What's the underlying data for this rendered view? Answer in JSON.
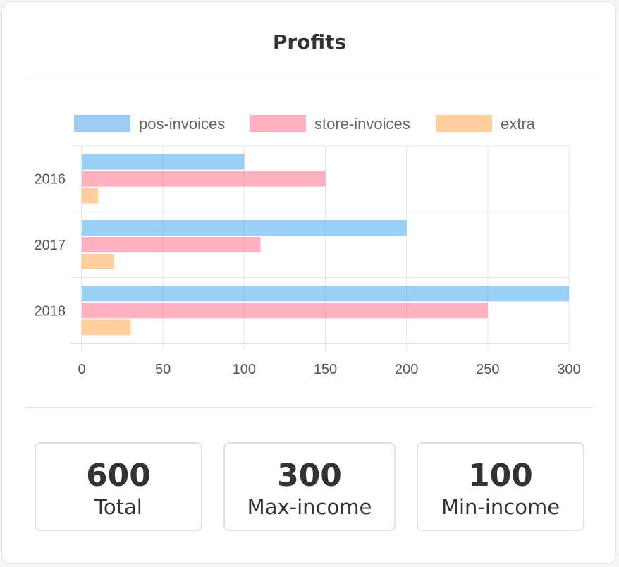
{
  "card": {
    "title": "Profits"
  },
  "chart_data": {
    "type": "bar",
    "orientation": "horizontal",
    "categories": [
      "2016",
      "2017",
      "2018"
    ],
    "series": [
      {
        "name": "pos-invoices",
        "values": [
          100,
          200,
          300
        ],
        "color": "#9cccf4",
        "fill": "rgba(54,162,235,0.5)"
      },
      {
        "name": "store-invoices",
        "values": [
          150,
          110,
          250
        ],
        "color": "#ffb1c1",
        "fill": "rgba(255,99,132,0.5)"
      },
      {
        "name": "extra",
        "values": [
          10,
          20,
          30
        ],
        "color": "#ffcf9f",
        "fill": "rgba(255,159,64,0.5)"
      }
    ],
    "xlim": [
      0,
      300
    ],
    "xticks": [
      0,
      50,
      100,
      150,
      200,
      250,
      300
    ],
    "legend": "top",
    "grid": true
  },
  "stats": [
    {
      "value": "600",
      "label": "Total"
    },
    {
      "value": "300",
      "label": "Max-income"
    },
    {
      "value": "100",
      "label": "Min-income"
    }
  ]
}
